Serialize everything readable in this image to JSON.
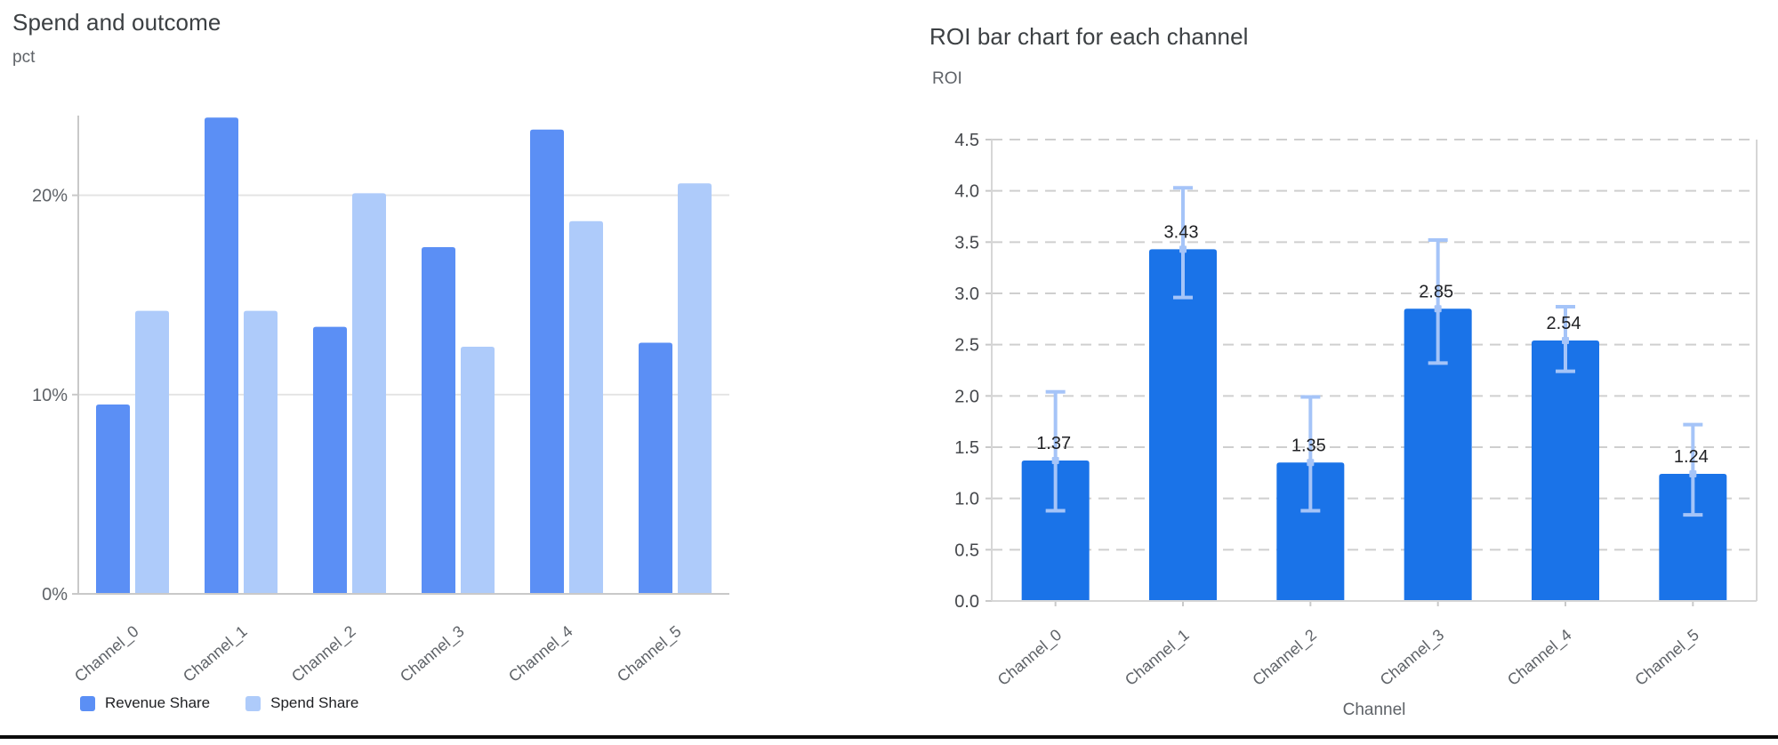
{
  "window": {
    "background": "#ffffff",
    "bottom_rule_color": "#0b0b0b"
  },
  "colors": {
    "title": "#3c4043",
    "axis_label": "#5f6368",
    "tick_left": "#5f6368",
    "tick_right": "#46484c",
    "value_label": "#202124",
    "grid_solid": "#e4e4e4",
    "grid_dashed": "#cfcfcf",
    "axis_line": "#c9c9c9",
    "plot_border": "#d6d6d6"
  },
  "chart_data": [
    {
      "type": "bar",
      "title": "Spend and outcome",
      "unit_label": "pct",
      "categories": [
        "Channel_0",
        "Channel_1",
        "Channel_2",
        "Channel_3",
        "Channel_4",
        "Channel_5"
      ],
      "series": [
        {
          "name": "Revenue Share",
          "color": "#5b8ff5",
          "values": [
            9.5,
            23.9,
            13.4,
            17.4,
            23.3,
            12.6
          ]
        },
        {
          "name": "Spend Share",
          "color": "#aecbfa",
          "values": [
            14.2,
            14.2,
            20.1,
            12.4,
            18.7,
            20.6
          ]
        }
      ],
      "y_ticks": [
        {
          "v": 0,
          "label": "0%"
        },
        {
          "v": 10,
          "label": "10%"
        },
        {
          "v": 20,
          "label": "20%"
        }
      ],
      "ylim": [
        0,
        24
      ],
      "grid": "solid",
      "legend_position": "bottom"
    },
    {
      "type": "bar",
      "title": "ROI bar chart for each channel",
      "ylabel": "ROI",
      "xlabel": "Channel",
      "categories": [
        "Channel_0",
        "Channel_1",
        "Channel_2",
        "Channel_3",
        "Channel_4",
        "Channel_5"
      ],
      "series": [
        {
          "name": "ROI",
          "color": "#1a73e8",
          "values": [
            1.37,
            3.43,
            1.35,
            2.85,
            2.54,
            1.24
          ]
        }
      ],
      "bar_labels": [
        "1.37",
        "3.43",
        "1.35",
        "2.85",
        "2.54",
        "1.24"
      ],
      "error_bars": {
        "color": "#a5c4f8",
        "low": [
          0.88,
          2.96,
          0.88,
          2.32,
          2.24,
          0.84
        ],
        "high": [
          2.04,
          4.03,
          1.99,
          3.52,
          2.87,
          1.72
        ]
      },
      "y_ticks": [
        {
          "v": 0,
          "label": "0.0"
        },
        {
          "v": 0.5,
          "label": "0.5"
        },
        {
          "v": 1,
          "label": "1.0"
        },
        {
          "v": 1.5,
          "label": "1.5"
        },
        {
          "v": 2,
          "label": "2.0"
        },
        {
          "v": 2.5,
          "label": "2.5"
        },
        {
          "v": 3,
          "label": "3.0"
        },
        {
          "v": 3.5,
          "label": "3.5"
        },
        {
          "v": 4,
          "label": "4.0"
        },
        {
          "v": 4.5,
          "label": "4.5"
        }
      ],
      "ylim": [
        0,
        4.5
      ],
      "grid": "dashed",
      "legend_position": "none"
    }
  ]
}
